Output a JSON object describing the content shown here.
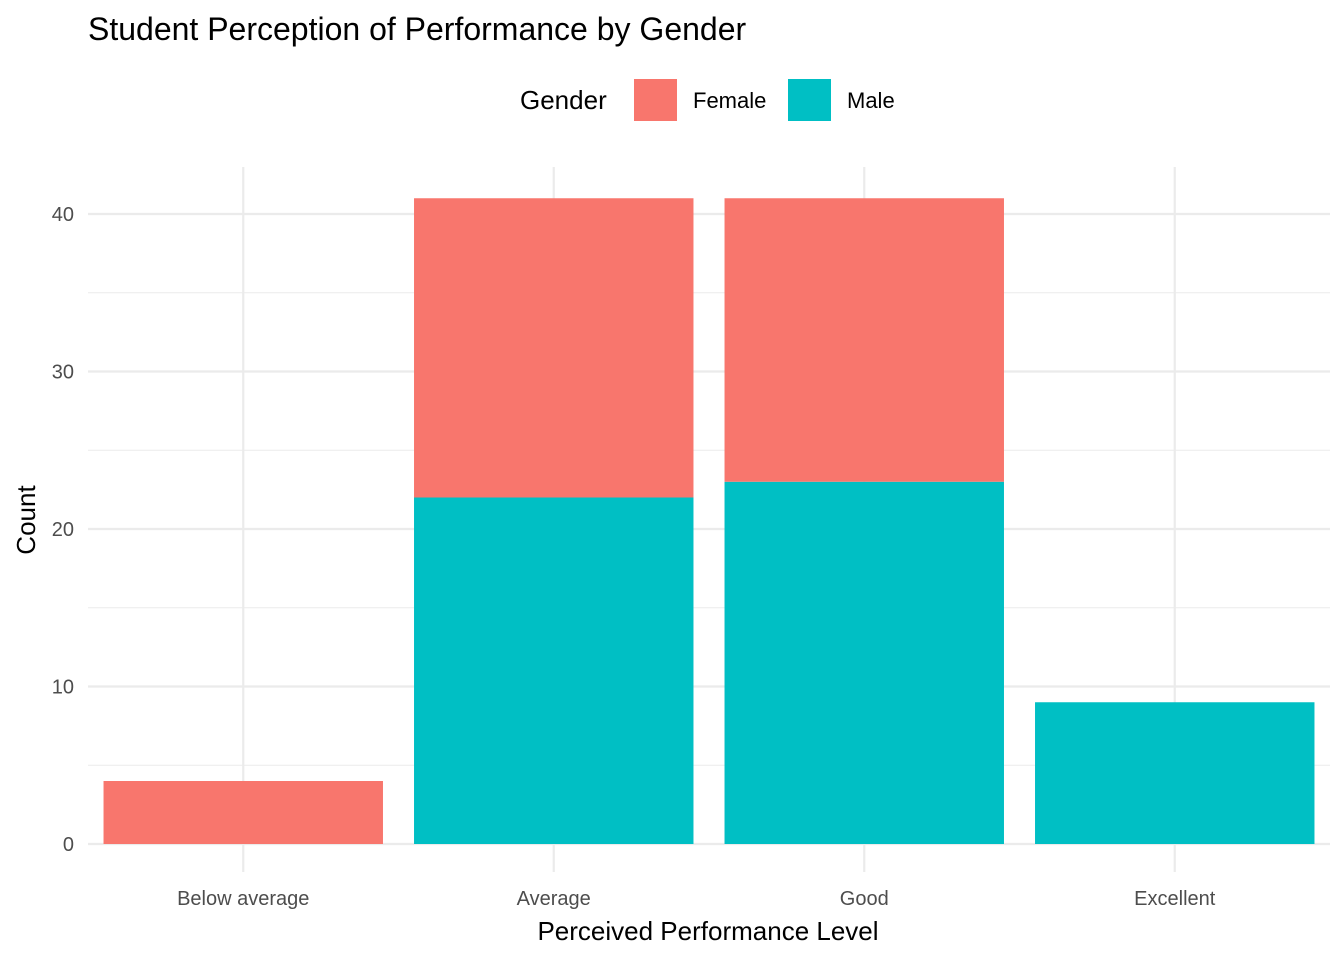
{
  "chart_data": {
    "type": "bar",
    "stacked": true,
    "title": "Student Perception of Performance by Gender",
    "xlabel": "Perceived Performance Level",
    "ylabel": "Count",
    "categories": [
      "Below average",
      "Average",
      "Good",
      "Excellent"
    ],
    "series": [
      {
        "name": "Female",
        "color": "#F8766D",
        "values": [
          4,
          19,
          18,
          0
        ]
      },
      {
        "name": "Male",
        "color": "#00BFC4",
        "values": [
          0,
          22,
          23,
          9
        ]
      }
    ],
    "stack_order_bottom_to_top": [
      "Male",
      "Female"
    ],
    "ylim": [
      0,
      43
    ],
    "yticks": [
      0,
      10,
      20,
      30,
      40
    ],
    "legend": {
      "title": "Gender",
      "position": "top"
    },
    "grid": true
  }
}
